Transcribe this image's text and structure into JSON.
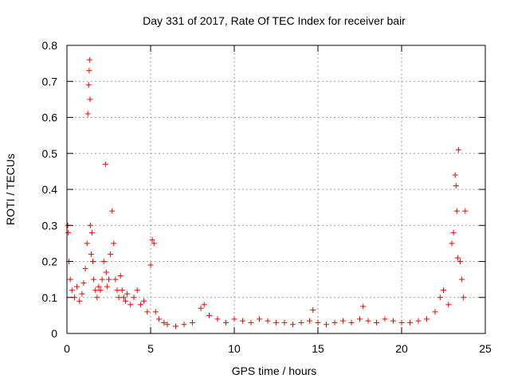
{
  "chart_data": {
    "type": "scatter",
    "title": "Day 331 of 2017, Rate Of TEC Index for receiver bair",
    "xlabel": "GPS time / hours",
    "ylabel": "ROTI / TECUs",
    "xlim": [
      0,
      25
    ],
    "ylim": [
      0,
      0.8
    ],
    "xticks": [
      0,
      5,
      10,
      15,
      20,
      25
    ],
    "xtick_labels": [
      "0",
      "5",
      "10",
      "15",
      "20",
      "25"
    ],
    "yticks": [
      0,
      0.1,
      0.2,
      0.3,
      0.4,
      0.5,
      0.6,
      0.7,
      0.8
    ],
    "ytick_labels": [
      "0",
      "0.1",
      "0.2",
      "0.3",
      "0.4",
      "0.5",
      "0.6",
      "0.7",
      "0.8"
    ],
    "grid": true,
    "marker": "+",
    "color": "#ff0000",
    "series": [
      {
        "name": "ROTI",
        "x": [
          0.05,
          0.08,
          0.12,
          0.2,
          0.3,
          0.45,
          0.6,
          0.75,
          0.9,
          1.0,
          1.1,
          1.2,
          1.25,
          1.3,
          1.33,
          1.35,
          1.38,
          1.4,
          1.45,
          1.5,
          1.55,
          1.6,
          1.7,
          1.8,
          1.9,
          2.0,
          2.1,
          2.2,
          2.3,
          2.35,
          2.4,
          2.5,
          2.6,
          2.7,
          2.8,
          2.9,
          3.0,
          3.1,
          3.2,
          3.3,
          3.4,
          3.5,
          3.6,
          3.8,
          4.0,
          4.2,
          4.4,
          4.6,
          4.8,
          5.0,
          5.1,
          5.2,
          5.3,
          5.5,
          5.8,
          6.0,
          6.5,
          7.0,
          7.5,
          8.0,
          8.2,
          8.5,
          9.0,
          9.5,
          10.0,
          10.5,
          11.0,
          11.5,
          12.0,
          12.5,
          13.0,
          13.5,
          14.0,
          14.5,
          14.7,
          15.0,
          15.5,
          16.0,
          16.5,
          17.0,
          17.5,
          17.7,
          18.0,
          18.5,
          19.0,
          19.5,
          20.0,
          20.5,
          21.0,
          21.5,
          22.0,
          22.3,
          22.5,
          22.8,
          23.0,
          23.1,
          23.2,
          23.25,
          23.3,
          23.35,
          23.4,
          23.5,
          23.6,
          23.7,
          23.8
        ],
        "y": [
          0.3,
          0.28,
          0.2,
          0.15,
          0.12,
          0.1,
          0.13,
          0.09,
          0.11,
          0.14,
          0.18,
          0.25,
          0.61,
          0.69,
          0.73,
          0.76,
          0.65,
          0.3,
          0.22,
          0.28,
          0.2,
          0.15,
          0.12,
          0.1,
          0.13,
          0.12,
          0.15,
          0.2,
          0.47,
          0.17,
          0.13,
          0.15,
          0.22,
          0.34,
          0.25,
          0.15,
          0.12,
          0.1,
          0.16,
          0.12,
          0.1,
          0.09,
          0.11,
          0.08,
          0.1,
          0.12,
          0.08,
          0.09,
          0.06,
          0.19,
          0.26,
          0.25,
          0.06,
          0.04,
          0.03,
          0.025,
          0.02,
          0.025,
          0.03,
          0.07,
          0.08,
          0.05,
          0.04,
          0.03,
          0.04,
          0.035,
          0.03,
          0.04,
          0.035,
          0.03,
          0.03,
          0.025,
          0.03,
          0.035,
          0.065,
          0.03,
          0.025,
          0.03,
          0.035,
          0.03,
          0.04,
          0.075,
          0.035,
          0.03,
          0.04,
          0.035,
          0.03,
          0.03,
          0.035,
          0.04,
          0.06,
          0.1,
          0.12,
          0.08,
          0.25,
          0.28,
          0.44,
          0.41,
          0.34,
          0.21,
          0.51,
          0.2,
          0.15,
          0.1,
          0.34
        ]
      }
    ]
  }
}
